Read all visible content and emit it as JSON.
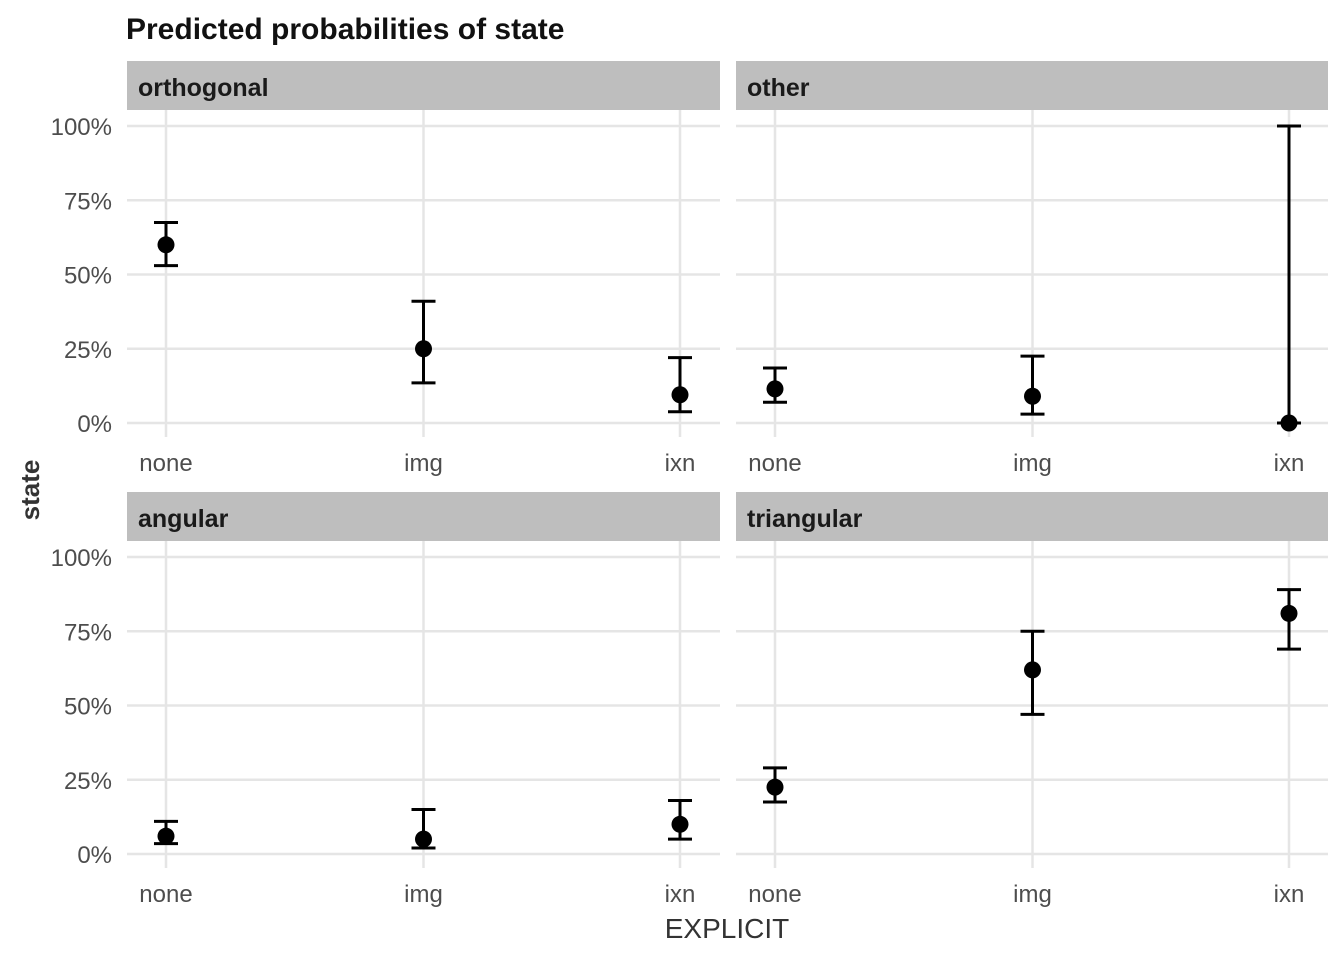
{
  "chart_data": {
    "type": "scatter",
    "title": "Predicted probabilities of state",
    "xlabel": "EXPLICIT",
    "ylabel": "state",
    "categories": [
      "none",
      "img",
      "ixn"
    ],
    "ylim": [
      0,
      100
    ],
    "y_ticks": [
      0,
      25,
      50,
      75,
      100
    ],
    "y_tick_labels": [
      "0%",
      "25%",
      "50%",
      "75%",
      "100%"
    ],
    "grid": true,
    "error_bars": true,
    "panels": [
      {
        "name": "orthogonal",
        "values": [
          60,
          25,
          9.5
        ],
        "lower": [
          53,
          13.5,
          3.8
        ],
        "upper": [
          67.5,
          41,
          22
        ]
      },
      {
        "name": "other",
        "values": [
          11.5,
          9,
          0
        ],
        "lower": [
          7,
          3,
          0
        ],
        "upper": [
          18.5,
          22.5,
          100
        ]
      },
      {
        "name": "angular",
        "values": [
          6,
          5,
          10
        ],
        "lower": [
          3.5,
          2,
          5
        ],
        "upper": [
          11,
          15,
          18
        ]
      },
      {
        "name": "triangular",
        "values": [
          22.5,
          62,
          81
        ],
        "lower": [
          17.5,
          47,
          69
        ],
        "upper": [
          29,
          75,
          89
        ]
      }
    ]
  }
}
